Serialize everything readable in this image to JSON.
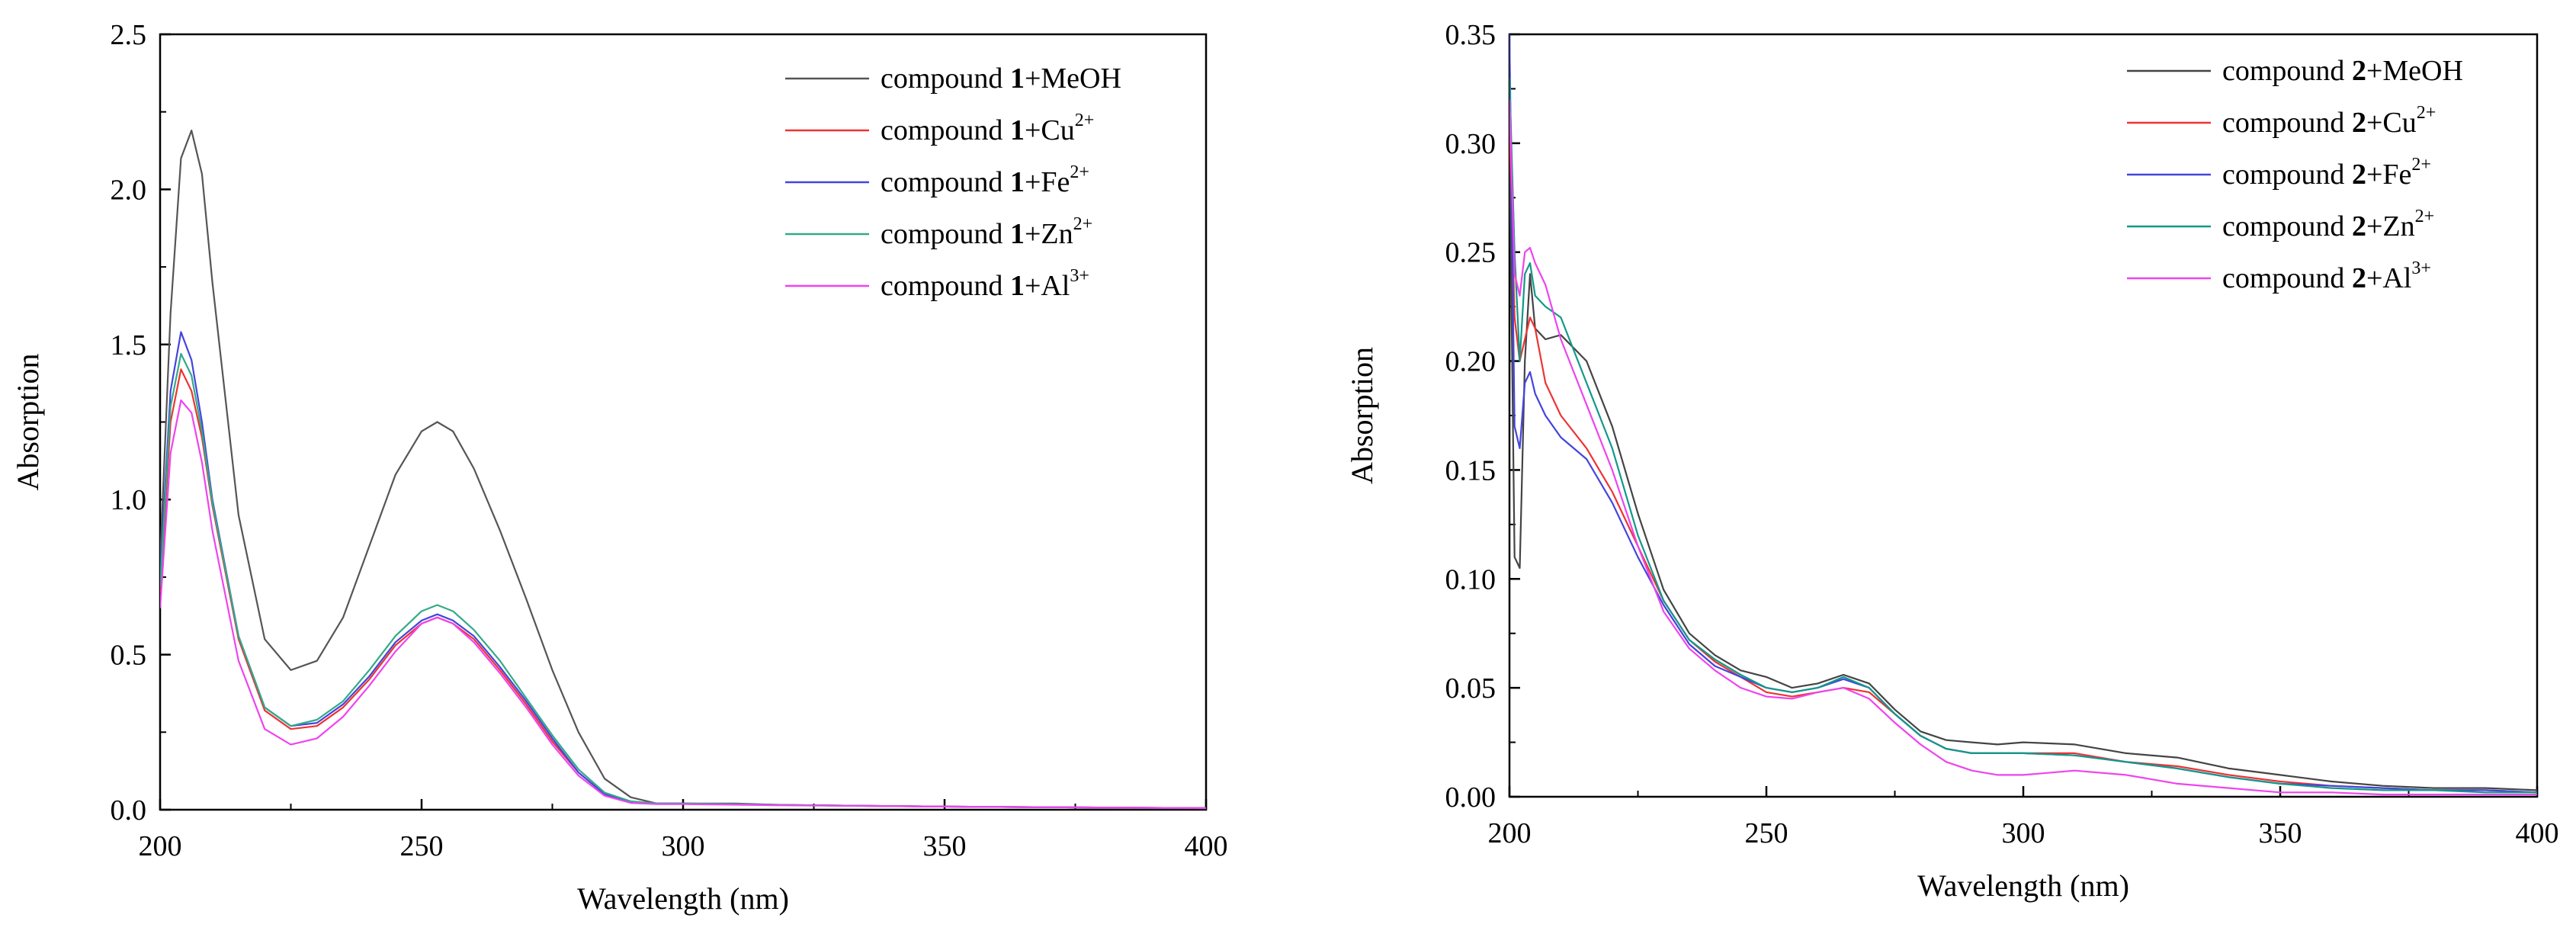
{
  "chart_data": [
    {
      "type": "line",
      "xlabel": "Wavelength (nm)",
      "ylabel": "Absorption",
      "xlim": [
        200,
        400
      ],
      "ylim": [
        0,
        2.5
      ],
      "xticks": [
        "200",
        "250",
        "300",
        "350",
        "400"
      ],
      "yticks": [
        "0.0",
        "0.5",
        "1.0",
        "1.5",
        "2.0",
        "2.5"
      ],
      "legend_position": "top-right",
      "series": [
        {
          "prefix": "compound ",
          "bold": "1",
          "suffix": "+MeOH",
          "sup": "",
          "color": "#555555",
          "x": [
            200,
            202,
            204,
            206,
            208,
            210,
            215,
            220,
            225,
            230,
            235,
            240,
            245,
            250,
            253,
            256,
            260,
            265,
            270,
            275,
            280,
            285,
            290,
            295,
            300,
            310,
            320,
            350,
            400
          ],
          "y": [
            0.8,
            1.6,
            2.1,
            2.19,
            2.05,
            1.7,
            0.95,
            0.55,
            0.45,
            0.48,
            0.62,
            0.85,
            1.08,
            1.22,
            1.25,
            1.22,
            1.1,
            0.9,
            0.68,
            0.45,
            0.25,
            0.1,
            0.04,
            0.02,
            0.02,
            0.02,
            0.015,
            0.01,
            0.005
          ]
        },
        {
          "prefix": "compound ",
          "bold": "1",
          "suffix": "+Cu",
          "sup": "2+",
          "color": "#ee3333",
          "x": [
            200,
            202,
            204,
            206,
            208,
            210,
            215,
            220,
            225,
            230,
            235,
            240,
            245,
            250,
            253,
            256,
            260,
            265,
            270,
            275,
            280,
            285,
            290,
            295,
            300,
            310,
            320,
            350,
            400
          ],
          "y": [
            0.7,
            1.25,
            1.42,
            1.35,
            1.2,
            0.98,
            0.55,
            0.32,
            0.26,
            0.27,
            0.33,
            0.42,
            0.53,
            0.6,
            0.62,
            0.6,
            0.55,
            0.45,
            0.34,
            0.22,
            0.12,
            0.05,
            0.025,
            0.02,
            0.02,
            0.018,
            0.015,
            0.01,
            0.005
          ]
        },
        {
          "prefix": "compound ",
          "bold": "1",
          "suffix": "+Fe",
          "sup": "2+",
          "color": "#4444dd",
          "x": [
            200,
            202,
            204,
            206,
            208,
            210,
            215,
            220,
            225,
            230,
            235,
            240,
            245,
            250,
            253,
            256,
            260,
            265,
            270,
            275,
            280,
            285,
            290,
            295,
            300,
            310,
            320,
            350,
            400
          ],
          "y": [
            0.75,
            1.35,
            1.54,
            1.45,
            1.25,
            1.0,
            0.56,
            0.33,
            0.27,
            0.28,
            0.34,
            0.43,
            0.54,
            0.61,
            0.63,
            0.61,
            0.56,
            0.46,
            0.35,
            0.23,
            0.12,
            0.05,
            0.025,
            0.02,
            0.02,
            0.018,
            0.015,
            0.01,
            0.005
          ]
        },
        {
          "prefix": "compound ",
          "bold": "1",
          "suffix": "+Zn",
          "sup": "2+",
          "color": "#33aa88",
          "x": [
            200,
            202,
            204,
            206,
            208,
            210,
            215,
            220,
            225,
            230,
            235,
            240,
            245,
            250,
            253,
            256,
            260,
            265,
            270,
            275,
            280,
            285,
            290,
            295,
            300,
            310,
            320,
            350,
            400
          ],
          "y": [
            0.72,
            1.3,
            1.47,
            1.4,
            1.22,
            0.99,
            0.56,
            0.33,
            0.27,
            0.29,
            0.35,
            0.45,
            0.56,
            0.64,
            0.66,
            0.64,
            0.58,
            0.48,
            0.36,
            0.24,
            0.13,
            0.055,
            0.027,
            0.02,
            0.02,
            0.018,
            0.015,
            0.01,
            0.005
          ]
        },
        {
          "prefix": "compound ",
          "bold": "1",
          "suffix": "+Al",
          "sup": "3+",
          "color": "#ee44ee",
          "x": [
            200,
            202,
            204,
            206,
            208,
            210,
            215,
            220,
            225,
            230,
            235,
            240,
            245,
            250,
            253,
            256,
            260,
            265,
            270,
            275,
            280,
            285,
            290,
            295,
            300,
            310,
            320,
            350,
            400
          ],
          "y": [
            0.65,
            1.15,
            1.32,
            1.28,
            1.12,
            0.9,
            0.48,
            0.26,
            0.21,
            0.23,
            0.3,
            0.4,
            0.51,
            0.6,
            0.62,
            0.6,
            0.54,
            0.44,
            0.33,
            0.21,
            0.11,
            0.045,
            0.022,
            0.018,
            0.018,
            0.016,
            0.014,
            0.01,
            0.005
          ]
        }
      ]
    },
    {
      "type": "line",
      "xlabel": "Wavelength (nm)",
      "ylabel": "Absorption",
      "xlim": [
        200,
        400
      ],
      "ylim": [
        0,
        0.35
      ],
      "xticks": [
        "200",
        "250",
        "300",
        "350",
        "400"
      ],
      "yticks": [
        "0.00",
        "0.05",
        "0.10",
        "0.15",
        "0.20",
        "0.25",
        "0.30",
        "0.35"
      ],
      "legend_position": "top-right",
      "series": [
        {
          "prefix": "compound ",
          "bold": "2",
          "suffix": "+MeOH",
          "sup": "",
          "color": "#444444",
          "x": [
            200,
            201,
            202,
            203,
            204,
            205,
            207,
            210,
            215,
            220,
            225,
            230,
            235,
            240,
            245,
            250,
            255,
            260,
            265,
            270,
            275,
            280,
            285,
            290,
            295,
            300,
            310,
            320,
            330,
            340,
            350,
            360,
            370,
            380,
            390,
            400
          ],
          "y": [
            0.3,
            0.11,
            0.105,
            0.2,
            0.24,
            0.215,
            0.21,
            0.212,
            0.2,
            0.17,
            0.13,
            0.095,
            0.075,
            0.065,
            0.058,
            0.055,
            0.05,
            0.052,
            0.056,
            0.052,
            0.04,
            0.03,
            0.026,
            0.025,
            0.024,
            0.025,
            0.024,
            0.02,
            0.018,
            0.013,
            0.01,
            0.007,
            0.005,
            0.004,
            0.004,
            0.003
          ]
        },
        {
          "prefix": "compound ",
          "bold": "2",
          "suffix": "+Cu",
          "sup": "2+",
          "color": "#ee3333",
          "x": [
            200,
            201,
            202,
            203,
            204,
            205,
            207,
            210,
            215,
            220,
            225,
            230,
            235,
            240,
            245,
            250,
            255,
            260,
            265,
            270,
            275,
            280,
            285,
            290,
            295,
            300,
            310,
            320,
            330,
            340,
            350,
            360,
            370,
            380,
            390,
            400
          ],
          "y": [
            0.31,
            0.22,
            0.2,
            0.21,
            0.22,
            0.215,
            0.19,
            0.175,
            0.16,
            0.14,
            0.115,
            0.09,
            0.072,
            0.062,
            0.055,
            0.048,
            0.046,
            0.048,
            0.05,
            0.048,
            0.038,
            0.028,
            0.022,
            0.02,
            0.02,
            0.02,
            0.02,
            0.016,
            0.014,
            0.01,
            0.007,
            0.005,
            0.004,
            0.003,
            0.003,
            0.002
          ]
        },
        {
          "prefix": "compound ",
          "bold": "2",
          "suffix": "+Fe",
          "sup": "2+",
          "color": "#4444dd",
          "x": [
            200,
            201,
            202,
            203,
            204,
            205,
            207,
            210,
            215,
            220,
            225,
            230,
            235,
            240,
            245,
            250,
            255,
            260,
            265,
            270,
            275,
            280,
            285,
            290,
            295,
            300,
            310,
            320,
            330,
            340,
            350,
            360,
            370,
            380,
            390,
            400
          ],
          "y": [
            0.35,
            0.17,
            0.16,
            0.19,
            0.195,
            0.185,
            0.175,
            0.165,
            0.155,
            0.135,
            0.11,
            0.088,
            0.07,
            0.06,
            0.055,
            0.05,
            0.048,
            0.05,
            0.054,
            0.05,
            0.038,
            0.028,
            0.022,
            0.02,
            0.02,
            0.02,
            0.019,
            0.016,
            0.013,
            0.009,
            0.006,
            0.005,
            0.004,
            0.003,
            0.003,
            0.002
          ]
        },
        {
          "prefix": "compound ",
          "bold": "2",
          "suffix": "+Zn",
          "sup": "2+",
          "color": "#119988",
          "x": [
            200,
            201,
            202,
            203,
            204,
            205,
            207,
            210,
            215,
            220,
            225,
            230,
            235,
            240,
            245,
            250,
            255,
            260,
            265,
            270,
            275,
            280,
            285,
            290,
            295,
            300,
            310,
            320,
            330,
            340,
            350,
            360,
            370,
            380,
            390,
            400
          ],
          "y": [
            0.33,
            0.25,
            0.2,
            0.24,
            0.245,
            0.23,
            0.225,
            0.22,
            0.19,
            0.16,
            0.12,
            0.09,
            0.072,
            0.063,
            0.056,
            0.05,
            0.048,
            0.05,
            0.055,
            0.05,
            0.038,
            0.028,
            0.022,
            0.02,
            0.02,
            0.02,
            0.019,
            0.016,
            0.013,
            0.009,
            0.006,
            0.004,
            0.003,
            0.003,
            0.002,
            0.002
          ]
        },
        {
          "prefix": "compound ",
          "bold": "2",
          "suffix": "+Al",
          "sup": "3+",
          "color": "#ee44ee",
          "x": [
            200,
            201,
            202,
            203,
            204,
            205,
            207,
            210,
            215,
            220,
            225,
            230,
            235,
            240,
            245,
            250,
            255,
            260,
            265,
            270,
            275,
            280,
            285,
            290,
            295,
            300,
            310,
            320,
            330,
            340,
            350,
            360,
            370,
            380,
            390,
            400
          ],
          "y": [
            0.32,
            0.24,
            0.23,
            0.25,
            0.252,
            0.245,
            0.235,
            0.21,
            0.18,
            0.15,
            0.115,
            0.085,
            0.068,
            0.058,
            0.05,
            0.046,
            0.045,
            0.048,
            0.05,
            0.045,
            0.034,
            0.024,
            0.016,
            0.012,
            0.01,
            0.01,
            0.012,
            0.01,
            0.006,
            0.004,
            0.002,
            0.002,
            0.001,
            0.001,
            0.001,
            0.001
          ]
        }
      ]
    }
  ]
}
